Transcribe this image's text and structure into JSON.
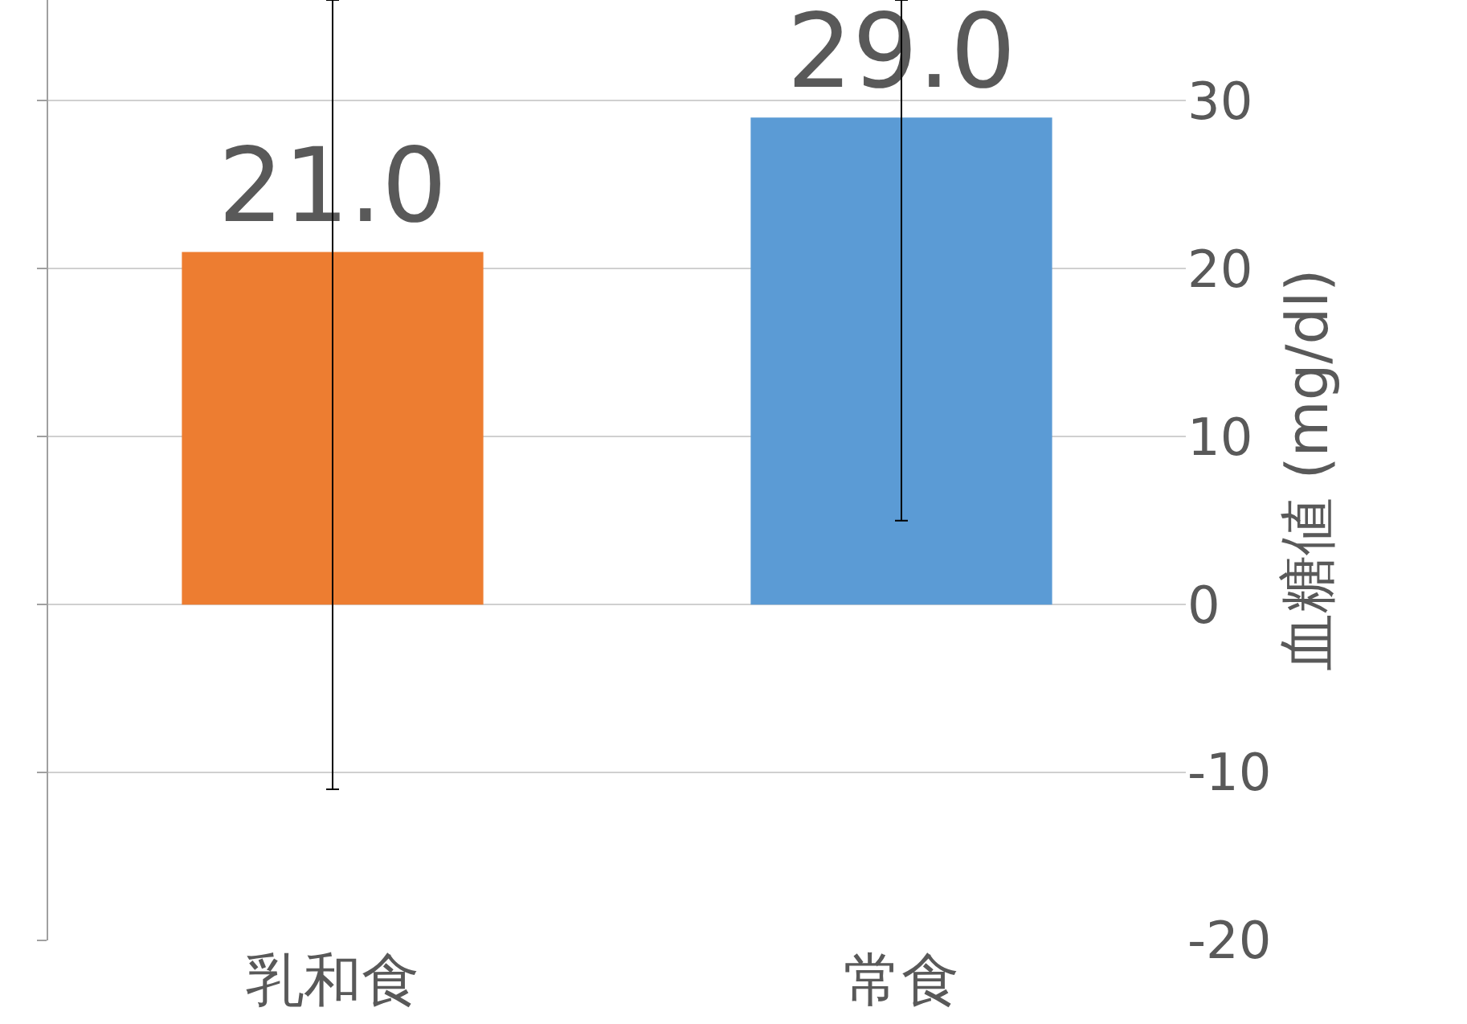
{
  "chart_data": {
    "type": "bar",
    "ylabel": "血糖値 (mg/dl)",
    "categories": [
      "乳和食",
      "常食"
    ],
    "values": [
      21.0,
      29.0
    ],
    "colors": [
      "#ed7d31",
      "#5b9bd5"
    ],
    "value_labels": [
      "21.0",
      "29.0"
    ],
    "errors": [
      [
        -11,
        36
      ],
      [
        5,
        36
      ]
    ],
    "ylim": [
      -20,
      36
    ],
    "yticks": [
      -20,
      -10,
      0,
      10,
      20,
      30
    ],
    "grid": "y"
  }
}
